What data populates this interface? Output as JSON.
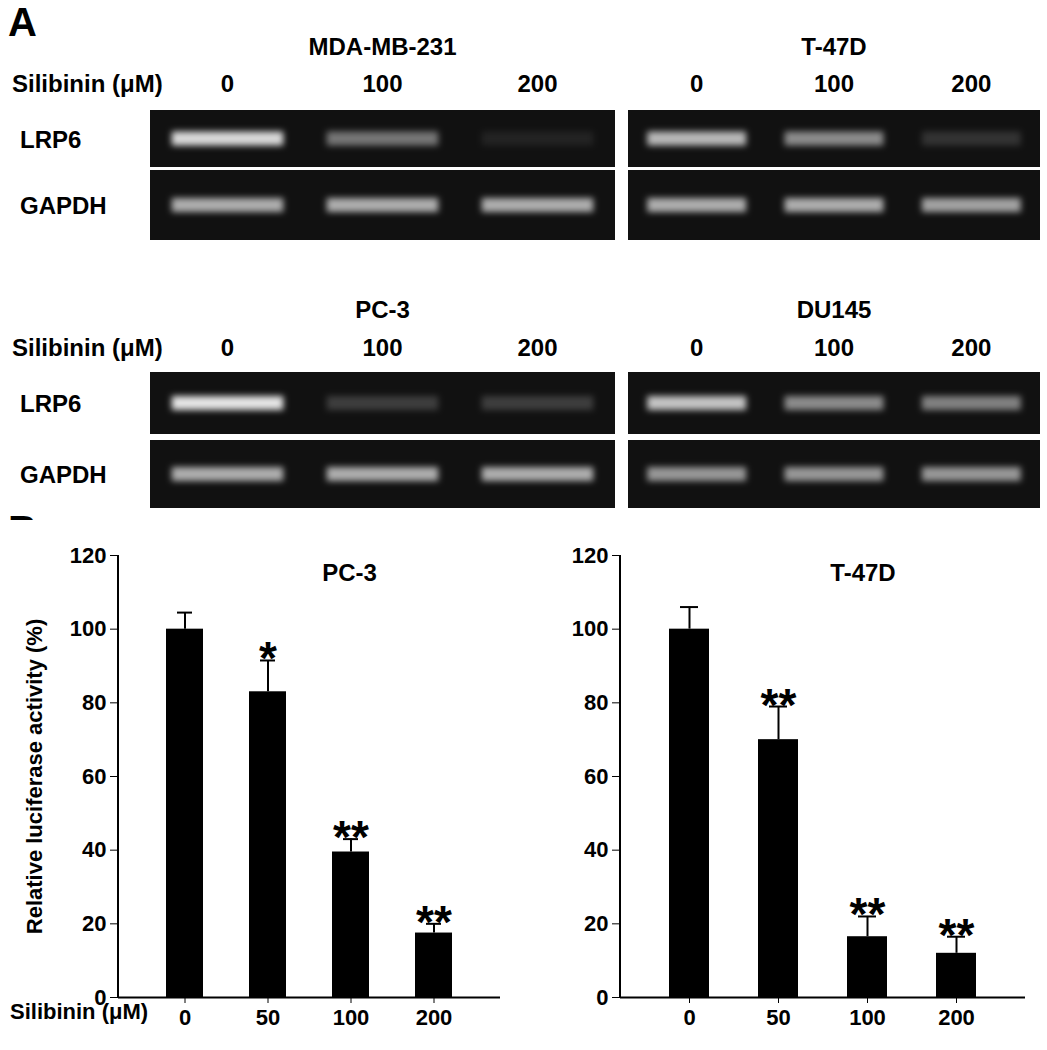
{
  "panel_labels": [
    "A",
    "B"
  ],
  "gel_panel": {
    "dose_label": "Silibinin (μM)",
    "row_labels": [
      "LRP6",
      "GAPDH"
    ],
    "gels": [
      {
        "title": "MDA-MB-231",
        "doses": [
          0,
          100,
          200
        ],
        "LRP6": [
          0.9,
          0.45,
          0.08
        ],
        "GAPDH": [
          0.7,
          0.7,
          0.7
        ]
      },
      {
        "title": "T-47D",
        "doses": [
          0,
          100,
          200
        ],
        "LRP6": [
          0.75,
          0.55,
          0.15
        ],
        "GAPDH": [
          0.7,
          0.7,
          0.65
        ]
      },
      {
        "title": "PC-3",
        "doses": [
          0,
          100,
          200
        ],
        "LRP6": [
          0.95,
          0.2,
          0.2
        ],
        "GAPDH": [
          0.7,
          0.7,
          0.7
        ]
      },
      {
        "title": "DU145",
        "doses": [
          0,
          100,
          200
        ],
        "LRP6": [
          0.8,
          0.55,
          0.5
        ],
        "GAPDH": [
          0.6,
          0.6,
          0.6
        ]
      }
    ]
  },
  "chart_data": [
    {
      "type": "bar",
      "title": "PC-3",
      "x_label": "Silibinin (μM)",
      "y_label": "Relative luciferase activity (%)",
      "categories": [
        "0",
        "50",
        "100",
        "200"
      ],
      "values": [
        100,
        83,
        39.5,
        17.5
      ],
      "errors": [
        4.5,
        8.5,
        3.5,
        2.5
      ],
      "significance": [
        null,
        "*",
        "**",
        "**"
      ],
      "color": "#000000",
      "ylim": [
        0,
        120
      ],
      "yticks": [
        0,
        20,
        40,
        60,
        80,
        100,
        120
      ],
      "grid": false
    },
    {
      "type": "bar",
      "title": "T-47D",
      "categories": [
        "0",
        "50",
        "100",
        "200"
      ],
      "values": [
        100,
        70,
        16.5,
        12
      ],
      "errors": [
        6,
        9,
        5.5,
        4.5
      ],
      "significance": [
        null,
        "**",
        "**",
        "**"
      ],
      "color": "#000000",
      "ylim": [
        0,
        120
      ],
      "yticks": [
        0,
        20,
        40,
        60,
        80,
        100,
        120
      ],
      "grid": false
    }
  ]
}
